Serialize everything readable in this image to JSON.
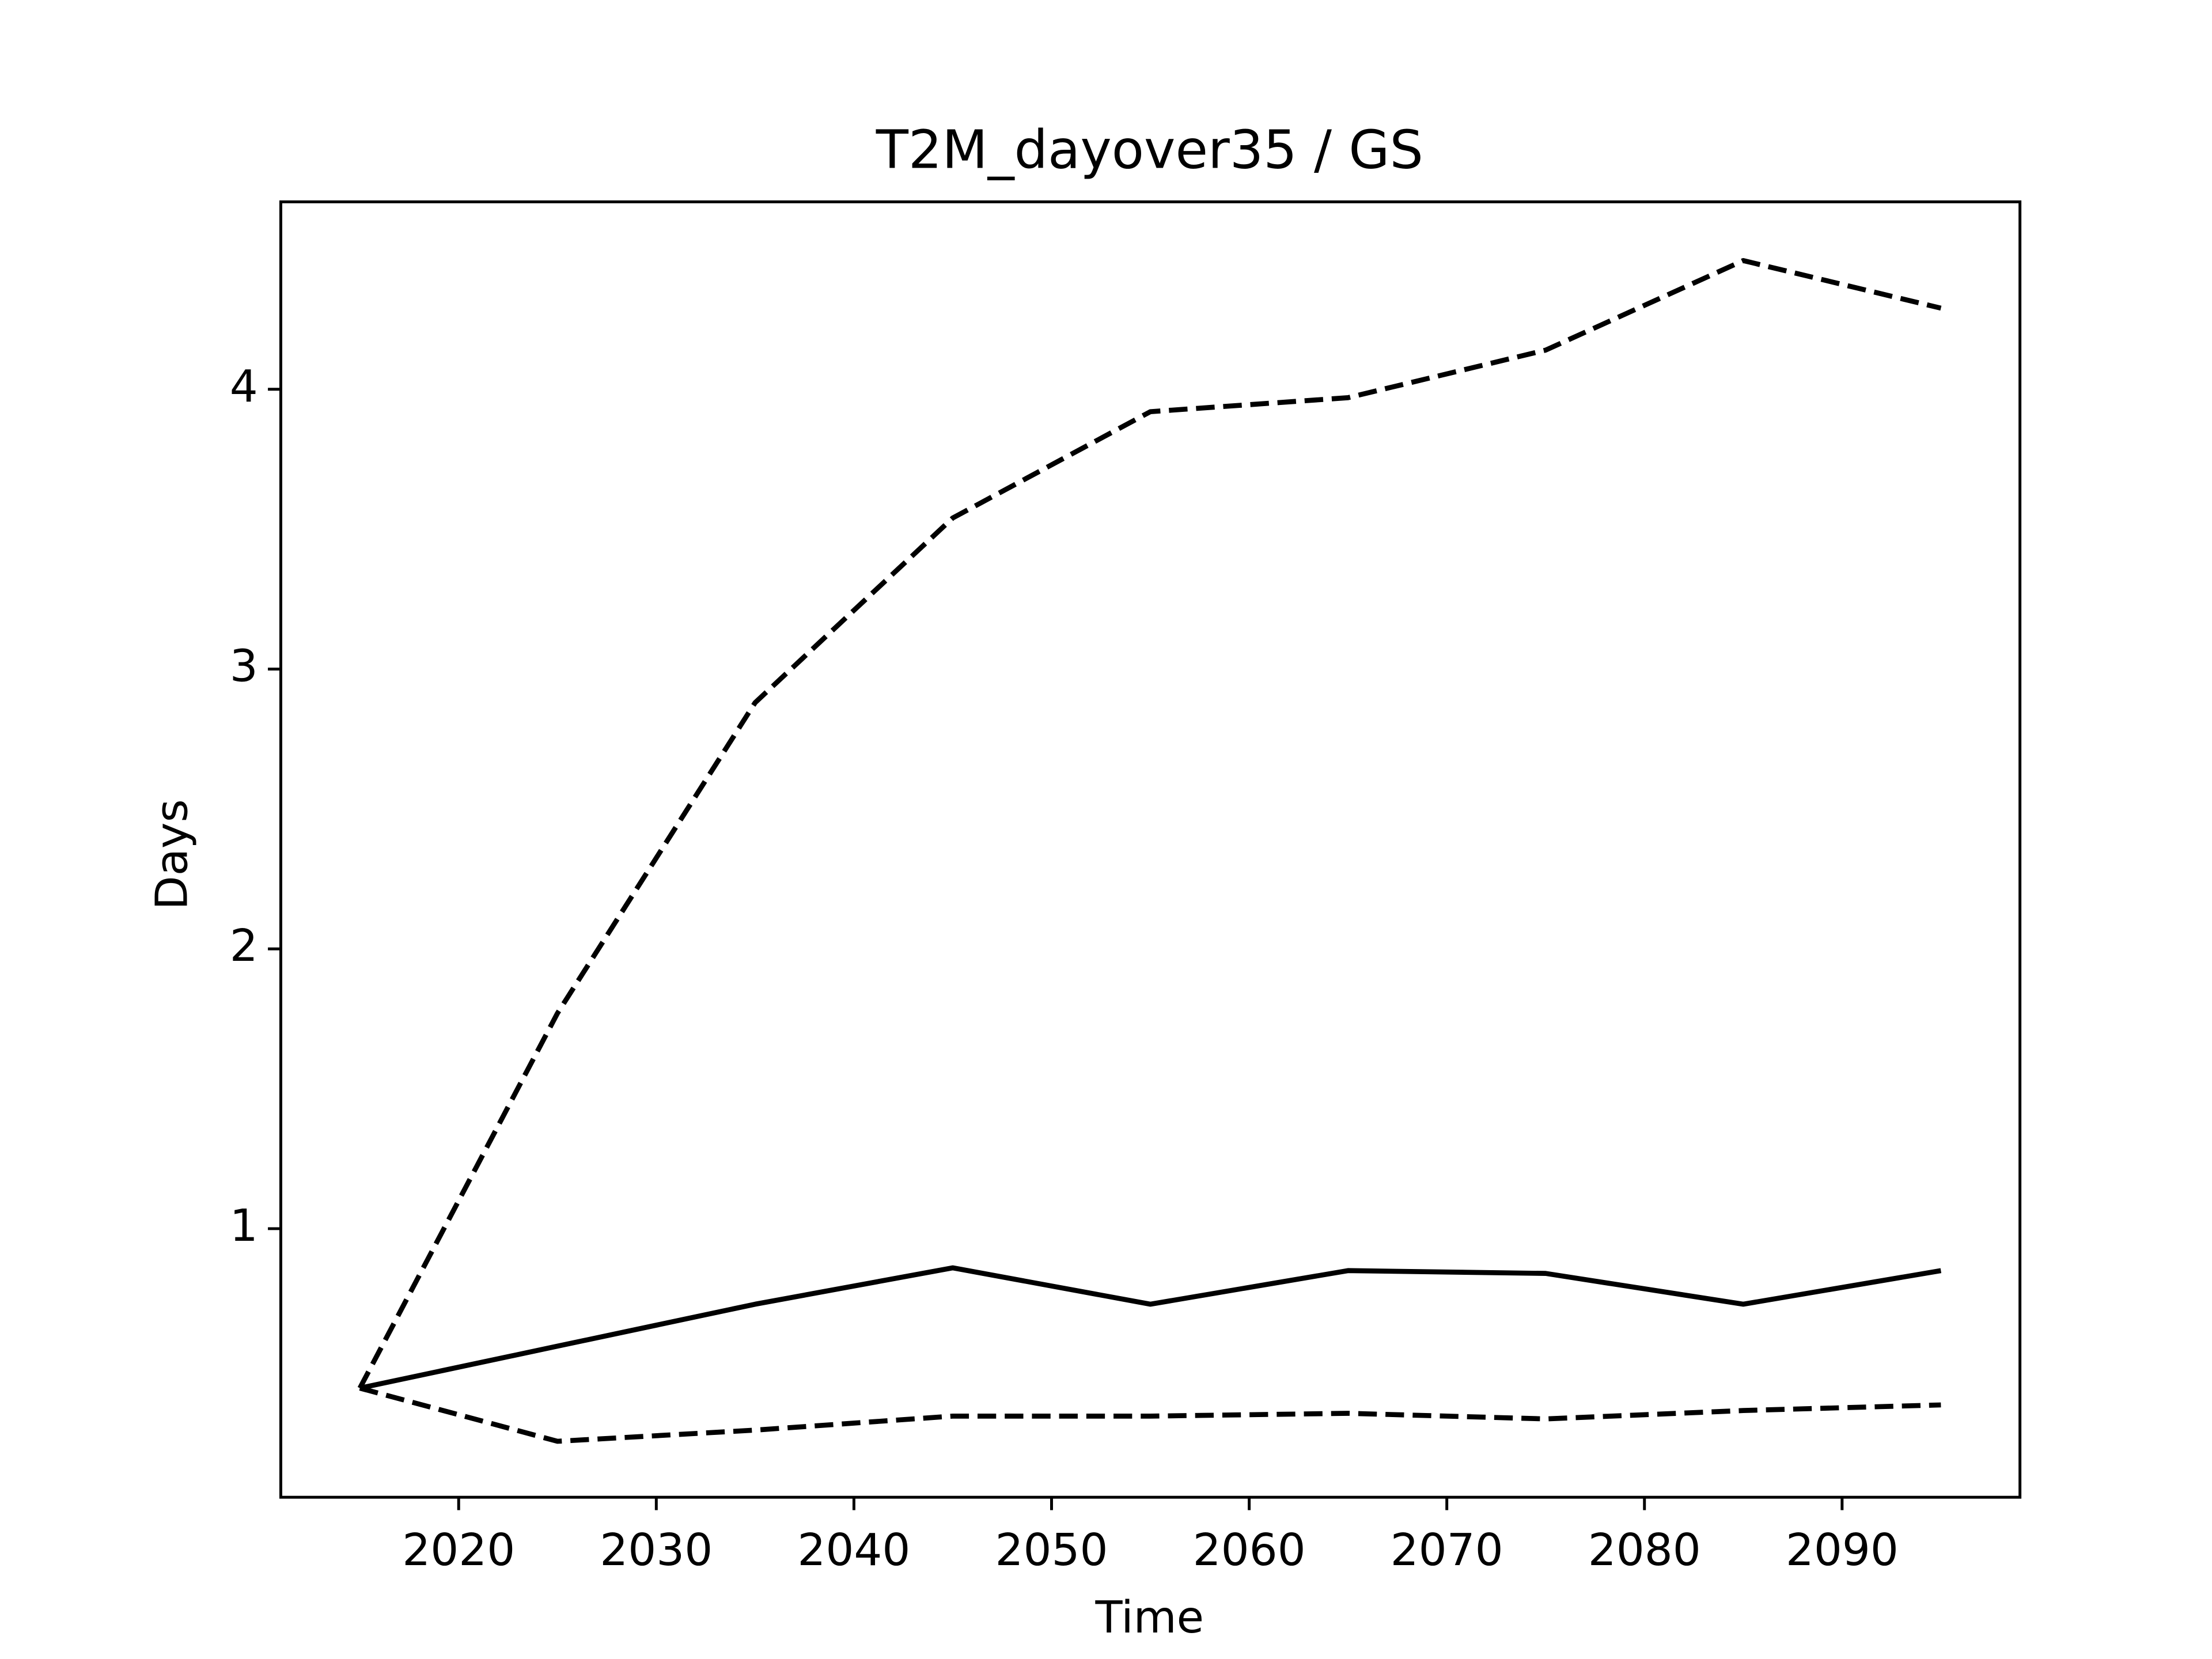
{
  "chart_data": {
    "type": "line",
    "title": "T2M_dayover35 / GS",
    "x_label": "Time",
    "y_label": "Days",
    "x": [
      2015,
      2025,
      2035,
      2045,
      2055,
      2065,
      2075,
      2085,
      2095
    ],
    "series": [
      {
        "color": "#000000",
        "linestyle": "solid",
        "values": [
          0.43,
          0.58,
          0.73,
          0.86,
          0.73,
          0.85,
          0.84,
          0.73,
          0.85
        ]
      },
      {
        "color": "#000000",
        "linestyle": "dashed",
        "values": [
          0.43,
          1.77,
          2.88,
          3.54,
          3.92,
          3.97,
          4.14,
          4.46,
          4.29
        ]
      },
      {
        "color": "#000000",
        "linestyle": "dashed",
        "values": [
          0.43,
          0.24,
          0.28,
          0.33,
          0.33,
          0.34,
          0.32,
          0.35,
          0.37
        ]
      }
    ],
    "xlim": [
      2011,
      2099
    ],
    "xticks": [
      2020,
      2030,
      2040,
      2050,
      2060,
      2070,
      2080,
      2090
    ],
    "ylim": [
      0.04,
      4.67
    ],
    "yticks": [
      1,
      2,
      3,
      4
    ],
    "grid": false
  }
}
